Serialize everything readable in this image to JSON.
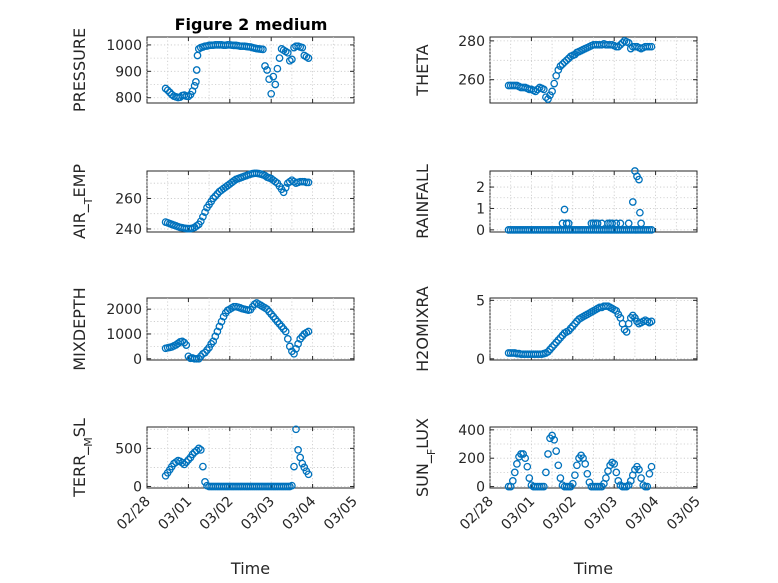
{
  "figure": {
    "title": "Figure 2 medium"
  },
  "chart_data": [
    {
      "type": "scatter",
      "name": "PRESSURE",
      "ylabel": "PRESSURE",
      "xlabel": "",
      "ylim": [
        780,
        1030
      ],
      "yticks": [
        800,
        900,
        1000
      ],
      "ytick_labels": [
        "800",
        "900",
        "1000"
      ],
      "xlim": [
        0,
        5
      ],
      "grid": true,
      "marker_color": "#0072BD",
      "x": [
        0.45,
        0.5,
        0.55,
        0.6,
        0.65,
        0.7,
        0.75,
        0.8,
        0.85,
        0.9,
        0.95,
        1.0,
        1.05,
        1.1,
        1.15,
        1.18,
        1.2,
        1.22,
        1.25,
        1.3,
        1.35,
        1.4,
        1.45,
        1.5,
        1.55,
        1.6,
        1.65,
        1.7,
        1.75,
        1.8,
        1.85,
        1.9,
        1.95,
        2.0,
        2.05,
        2.1,
        2.15,
        2.2,
        2.25,
        2.3,
        2.35,
        2.4,
        2.45,
        2.5,
        2.55,
        2.6,
        2.65,
        2.7,
        2.75,
        2.8,
        2.85,
        2.9,
        2.95,
        3.0,
        3.05,
        3.1,
        3.15,
        3.2,
        3.25,
        3.3,
        3.35,
        3.4,
        3.45,
        3.5,
        3.55,
        3.6,
        3.65,
        3.7,
        3.75,
        3.8,
        3.85,
        3.9
      ],
      "y": [
        835,
        828,
        820,
        812,
        806,
        803,
        801,
        802,
        808,
        810,
        806,
        805,
        812,
        825,
        845,
        860,
        905,
        960,
        985,
        990,
        992,
        995,
        996,
        998,
        999,
        999,
        1000,
        1000,
        1000,
        1000,
        999,
        999,
        1000,
        1000,
        999,
        998,
        998,
        997,
        995,
        995,
        995,
        994,
        993,
        992,
        990,
        988,
        986,
        985,
        984,
        983,
        920,
        905,
        870,
        815,
        880,
        850,
        910,
        950,
        985,
        980,
        975,
        970,
        940,
        945,
        990,
        995,
        995,
        992,
        990,
        960,
        955,
        950
      ]
    },
    {
      "type": "scatter",
      "name": "THETA",
      "ylabel": "THETA",
      "xlabel": "",
      "ylim": [
        248,
        282
      ],
      "yticks": [
        260,
        280
      ],
      "ytick_labels": [
        "260",
        "280"
      ],
      "xlim": [
        0,
        5
      ],
      "grid": true,
      "marker_color": "#0072BD",
      "x": [
        0.45,
        0.5,
        0.55,
        0.6,
        0.65,
        0.7,
        0.75,
        0.8,
        0.85,
        0.9,
        0.95,
        1.0,
        1.05,
        1.1,
        1.15,
        1.2,
        1.25,
        1.3,
        1.35,
        1.4,
        1.45,
        1.5,
        1.55,
        1.6,
        1.65,
        1.7,
        1.75,
        1.8,
        1.85,
        1.9,
        1.95,
        2.0,
        2.05,
        2.1,
        2.15,
        2.2,
        2.25,
        2.3,
        2.35,
        2.4,
        2.45,
        2.5,
        2.55,
        2.6,
        2.65,
        2.7,
        2.75,
        2.8,
        2.85,
        2.9,
        2.95,
        3.0,
        3.05,
        3.1,
        3.15,
        3.2,
        3.25,
        3.3,
        3.35,
        3.4,
        3.45,
        3.5,
        3.55,
        3.6,
        3.65,
        3.7,
        3.75,
        3.8,
        3.85,
        3.9
      ],
      "y": [
        257,
        257,
        257,
        257,
        257,
        256.5,
        256,
        256,
        256,
        255.5,
        255,
        255,
        254.5,
        254,
        255,
        256,
        255.5,
        255,
        251,
        250,
        252,
        254,
        258,
        262,
        265,
        267,
        268,
        269,
        270,
        271,
        272,
        272.5,
        273,
        274,
        274.5,
        275,
        275.5,
        276,
        276.5,
        277,
        277.5,
        278,
        278,
        278,
        278,
        278,
        278.5,
        278,
        278,
        278,
        278,
        277.5,
        277,
        277,
        278,
        279,
        280,
        279.5,
        279,
        276,
        277,
        277,
        277,
        276.5,
        276,
        276.5,
        277,
        277,
        277,
        277
      ]
    },
    {
      "type": "scatter",
      "name": "AIR_TEMP",
      "ylabel": "AIR_TEMP",
      "xlabel": "",
      "ylim": [
        238,
        278
      ],
      "yticks": [
        240,
        260
      ],
      "ytick_labels": [
        "240",
        "260"
      ],
      "xlim": [
        0,
        5
      ],
      "grid": true,
      "marker_color": "#0072BD",
      "x": [
        0.45,
        0.5,
        0.55,
        0.6,
        0.65,
        0.7,
        0.75,
        0.8,
        0.85,
        0.9,
        0.95,
        1.0,
        1.05,
        1.1,
        1.15,
        1.2,
        1.25,
        1.3,
        1.35,
        1.4,
        1.45,
        1.5,
        1.55,
        1.6,
        1.65,
        1.7,
        1.75,
        1.8,
        1.85,
        1.9,
        1.95,
        2.0,
        2.05,
        2.1,
        2.15,
        2.2,
        2.25,
        2.3,
        2.35,
        2.4,
        2.45,
        2.5,
        2.55,
        2.6,
        2.65,
        2.7,
        2.75,
        2.8,
        2.85,
        2.9,
        2.95,
        3.0,
        3.05,
        3.1,
        3.15,
        3.2,
        3.25,
        3.3,
        3.35,
        3.4,
        3.45,
        3.5,
        3.55,
        3.6,
        3.65,
        3.7,
        3.75,
        3.8,
        3.85,
        3.9
      ],
      "y": [
        244.5,
        244,
        243.5,
        243,
        242.5,
        242,
        241.5,
        241,
        240.8,
        240.5,
        240.3,
        240.2,
        240.2,
        240.5,
        241,
        242,
        243,
        245,
        248,
        251,
        254,
        256,
        258,
        260,
        261.5,
        263,
        264.5,
        265.5,
        266.5,
        267.5,
        268.5,
        269.5,
        270.5,
        271.5,
        272.5,
        273,
        273.5,
        274,
        274.5,
        275,
        275.5,
        276,
        276.3,
        276.5,
        276.5,
        276.3,
        276,
        275.5,
        275,
        274,
        273.5,
        273,
        272,
        271,
        270,
        268,
        266,
        264,
        267,
        270,
        271,
        272,
        271,
        270,
        270.5,
        271,
        271,
        271,
        270.5,
        270.5
      ]
    },
    {
      "type": "scatter",
      "name": "RAINFALL",
      "ylabel": "RAINFALL",
      "xlabel": "",
      "ylim": [
        -0.1,
        2.75
      ],
      "yticks": [
        0,
        1,
        2
      ],
      "ytick_labels": [
        "0",
        "1",
        "2"
      ],
      "xlim": [
        0,
        5
      ],
      "grid": true,
      "marker_color": "#0072BD",
      "x": [
        0.45,
        0.5,
        0.55,
        0.6,
        0.65,
        0.7,
        0.75,
        0.8,
        0.85,
        0.9,
        0.95,
        1.0,
        1.05,
        1.1,
        1.15,
        1.2,
        1.25,
        1.3,
        1.35,
        1.4,
        1.45,
        1.5,
        1.55,
        1.6,
        1.65,
        1.7,
        1.75,
        1.8,
        1.85,
        1.9,
        1.95,
        2.0,
        2.05,
        2.1,
        2.15,
        2.2,
        2.25,
        2.3,
        2.35,
        2.4,
        2.45,
        2.5,
        2.55,
        2.6,
        2.65,
        2.7,
        2.75,
        2.8,
        2.85,
        2.9,
        2.95,
        3.0,
        3.05,
        3.1,
        3.15,
        3.2,
        3.25,
        3.3,
        3.35,
        3.4,
        3.45,
        3.5,
        3.55,
        3.6,
        3.65,
        3.7,
        3.75,
        3.8,
        3.85,
        3.9,
        1.75,
        1.8,
        1.85,
        1.9,
        2.45,
        2.5,
        2.55,
        2.6,
        2.7,
        2.85,
        2.9,
        2.95,
        3.05,
        3.15,
        3.35,
        3.45,
        3.5,
        3.55,
        3.6,
        3.62,
        3.65
      ],
      "y": [
        0,
        0,
        0,
        0,
        0,
        0,
        0,
        0,
        0,
        0,
        0,
        0,
        0,
        0,
        0,
        0,
        0,
        0,
        0,
        0,
        0,
        0,
        0,
        0,
        0,
        0,
        0,
        0,
        0,
        0,
        0,
        0,
        0,
        0,
        0,
        0,
        0,
        0,
        0,
        0,
        0,
        0,
        0,
        0,
        0,
        0,
        0,
        0,
        0,
        0,
        0,
        0,
        0,
        0,
        0,
        0,
        0,
        0,
        0,
        0,
        0,
        0,
        0,
        0,
        0,
        0,
        0,
        0,
        0,
        0,
        0.3,
        0.95,
        0.3,
        0.3,
        0.3,
        0.3,
        0.3,
        0.3,
        0.3,
        0.3,
        0.3,
        0.3,
        0.3,
        0.3,
        0.3,
        1.3,
        2.75,
        2.5,
        2.35,
        0.8,
        0.3
      ]
    },
    {
      "type": "scatter",
      "name": "MIXDEPTH",
      "ylabel": "MIXDEPTH",
      "xlabel": "",
      "ylim": [
        -50,
        2450
      ],
      "yticks": [
        0,
        1000,
        2000
      ],
      "ytick_labels": [
        "0",
        "1000",
        "2000"
      ],
      "xlim": [
        0,
        5
      ],
      "grid": true,
      "marker_color": "#0072BD",
      "x": [
        0.45,
        0.5,
        0.55,
        0.6,
        0.65,
        0.7,
        0.75,
        0.8,
        0.85,
        0.9,
        0.95,
        1.0,
        1.05,
        1.1,
        1.15,
        1.2,
        1.25,
        1.3,
        1.35,
        1.4,
        1.45,
        1.5,
        1.55,
        1.6,
        1.65,
        1.7,
        1.75,
        1.8,
        1.85,
        1.9,
        1.95,
        2.0,
        2.05,
        2.1,
        2.15,
        2.2,
        2.25,
        2.3,
        2.35,
        2.4,
        2.45,
        2.5,
        2.55,
        2.6,
        2.65,
        2.7,
        2.75,
        2.8,
        2.85,
        2.9,
        2.95,
        3.0,
        3.05,
        3.1,
        3.15,
        3.2,
        3.25,
        3.3,
        3.35,
        3.4,
        3.45,
        3.5,
        3.55,
        3.6,
        3.65,
        3.7,
        3.75,
        3.8,
        3.85,
        3.9
      ],
      "y": [
        420,
        440,
        460,
        480,
        520,
        560,
        620,
        680,
        700,
        650,
        550,
        100,
        20,
        30,
        0,
        0,
        0,
        100,
        200,
        250,
        350,
        450,
        600,
        700,
        900,
        1100,
        1300,
        1500,
        1700,
        1850,
        1950,
        2000,
        2050,
        2100,
        2100,
        2080,
        2050,
        2020,
        2000,
        1980,
        1960,
        1980,
        2100,
        2200,
        2250,
        2200,
        2150,
        2100,
        2050,
        2000,
        1900,
        1800,
        1700,
        1600,
        1500,
        1400,
        1300,
        1200,
        1100,
        800,
        500,
        300,
        200,
        400,
        600,
        800,
        900,
        1000,
        1050,
        1100
      ]
    },
    {
      "type": "scatter",
      "name": "H2OMIXRA",
      "ylabel": "H2OMIXRA",
      "xlabel": "",
      "ylim": [
        -0.1,
        5.2
      ],
      "yticks": [
        0,
        5
      ],
      "ytick_labels": [
        "0",
        "5"
      ],
      "xlim": [
        0,
        5
      ],
      "grid": true,
      "marker_color": "#0072BD",
      "x": [
        0.45,
        0.5,
        0.55,
        0.6,
        0.65,
        0.7,
        0.75,
        0.8,
        0.85,
        0.9,
        0.95,
        1.0,
        1.05,
        1.1,
        1.15,
        1.2,
        1.25,
        1.3,
        1.35,
        1.4,
        1.45,
        1.5,
        1.55,
        1.6,
        1.65,
        1.7,
        1.75,
        1.8,
        1.85,
        1.9,
        1.95,
        2.0,
        2.05,
        2.1,
        2.15,
        2.2,
        2.25,
        2.3,
        2.35,
        2.4,
        2.45,
        2.5,
        2.55,
        2.6,
        2.65,
        2.7,
        2.75,
        2.8,
        2.85,
        2.9,
        2.95,
        3.0,
        3.05,
        3.1,
        3.15,
        3.2,
        3.25,
        3.3,
        3.35,
        3.4,
        3.45,
        3.5,
        3.55,
        3.6,
        3.65,
        3.7,
        3.75,
        3.8,
        3.85,
        3.9
      ],
      "y": [
        0.5,
        0.5,
        0.5,
        0.5,
        0.45,
        0.45,
        0.4,
        0.4,
        0.4,
        0.4,
        0.4,
        0.4,
        0.4,
        0.4,
        0.4,
        0.4,
        0.4,
        0.45,
        0.5,
        0.6,
        0.8,
        1.0,
        1.2,
        1.4,
        1.6,
        1.8,
        2.0,
        2.2,
        2.3,
        2.4,
        2.6,
        2.8,
        3.0,
        3.2,
        3.4,
        3.5,
        3.6,
        3.7,
        3.8,
        3.9,
        4.0,
        4.1,
        4.2,
        4.3,
        4.4,
        4.4,
        4.5,
        4.5,
        4.5,
        4.4,
        4.3,
        4.2,
        4.1,
        3.8,
        3.5,
        3.0,
        2.5,
        2.3,
        3.0,
        3.5,
        3.7,
        3.5,
        3.2,
        3.0,
        3.1,
        3.2,
        3.3,
        3.2,
        3.1,
        3.2
      ]
    },
    {
      "type": "scatter",
      "name": "TERR_MSL",
      "ylabel": "TERR_MSL",
      "xlabel": "Time",
      "ylim": [
        -20,
        780
      ],
      "yticks": [
        0,
        500
      ],
      "ytick_labels": [
        "0",
        "500"
      ],
      "xlim": [
        0,
        5
      ],
      "xticks": [
        0,
        1,
        2,
        3,
        4,
        5
      ],
      "xtick_labels": [
        "02/28",
        "03/01",
        "03/02",
        "03/03",
        "03/04",
        "03/05"
      ],
      "grid": true,
      "marker_color": "#0072BD",
      "x": [
        0.45,
        0.5,
        0.55,
        0.6,
        0.65,
        0.7,
        0.75,
        0.8,
        0.85,
        0.9,
        0.95,
        1.0,
        1.05,
        1.1,
        1.15,
        1.2,
        1.25,
        1.3,
        1.35,
        1.4,
        1.45,
        1.5,
        1.55,
        1.6,
        1.65,
        1.7,
        1.75,
        1.8,
        1.85,
        1.9,
        1.95,
        2.0,
        2.05,
        2.1,
        2.15,
        2.2,
        2.25,
        2.3,
        2.35,
        2.4,
        2.45,
        2.5,
        2.55,
        2.6,
        2.65,
        2.7,
        2.75,
        2.8,
        2.85,
        2.9,
        2.95,
        3.0,
        3.05,
        3.1,
        3.15,
        3.2,
        3.25,
        3.3,
        3.35,
        3.4,
        3.45,
        3.5,
        3.55,
        3.6,
        3.65,
        3.7,
        3.75,
        3.8,
        3.85,
        3.9
      ],
      "y": [
        140,
        180,
        220,
        260,
        300,
        320,
        340,
        330,
        310,
        290,
        320,
        350,
        380,
        420,
        450,
        470,
        500,
        480,
        260,
        60,
        10,
        0,
        0,
        0,
        0,
        0,
        0,
        0,
        0,
        0,
        0,
        0,
        0,
        0,
        0,
        0,
        0,
        0,
        0,
        0,
        0,
        0,
        0,
        0,
        0,
        0,
        0,
        0,
        0,
        0,
        0,
        0,
        0,
        0,
        0,
        0,
        0,
        0,
        0,
        0,
        0,
        10,
        260,
        750,
        480,
        380,
        300,
        250,
        200,
        160
      ]
    },
    {
      "type": "scatter",
      "name": "SUN_FLUX",
      "ylabel": "SUN_FLUX",
      "xlabel": "Time",
      "ylim": [
        -10,
        420
      ],
      "yticks": [
        0,
        200,
        400
      ],
      "ytick_labels": [
        "0",
        "200",
        "400"
      ],
      "xlim": [
        0,
        5
      ],
      "xticks": [
        0,
        1,
        2,
        3,
        4,
        5
      ],
      "xtick_labels": [
        "02/28",
        "03/01",
        "03/02",
        "03/03",
        "03/04",
        "03/05"
      ],
      "grid": true,
      "marker_color": "#0072BD",
      "x": [
        0.45,
        0.5,
        0.55,
        0.6,
        0.65,
        0.7,
        0.75,
        0.8,
        0.85,
        0.9,
        0.95,
        1.0,
        1.05,
        1.1,
        1.15,
        1.2,
        1.25,
        1.3,
        1.35,
        1.4,
        1.45,
        1.5,
        1.55,
        1.6,
        1.65,
        1.7,
        1.75,
        1.8,
        1.85,
        1.9,
        1.95,
        2.0,
        2.05,
        2.1,
        2.15,
        2.2,
        2.25,
        2.3,
        2.35,
        2.4,
        2.45,
        2.5,
        2.55,
        2.6,
        2.65,
        2.7,
        2.75,
        2.8,
        2.85,
        2.9,
        2.95,
        3.0,
        3.05,
        3.1,
        3.15,
        3.2,
        3.25,
        3.3,
        3.35,
        3.4,
        3.45,
        3.5,
        3.55,
        3.6,
        3.65,
        3.7,
        3.75,
        3.8,
        3.85,
        3.9
      ],
      "y": [
        0,
        0,
        40,
        100,
        160,
        210,
        230,
        230,
        200,
        140,
        60,
        10,
        0,
        0,
        0,
        0,
        0,
        0,
        100,
        230,
        340,
        360,
        330,
        250,
        150,
        60,
        10,
        0,
        0,
        0,
        0,
        20,
        80,
        150,
        200,
        220,
        200,
        160,
        90,
        30,
        0,
        0,
        0,
        0,
        0,
        0,
        20,
        60,
        110,
        150,
        170,
        160,
        100,
        40,
        10,
        0,
        0,
        0,
        10,
        40,
        80,
        120,
        140,
        120,
        60,
        10,
        0,
        0,
        90,
        140
      ]
    }
  ]
}
